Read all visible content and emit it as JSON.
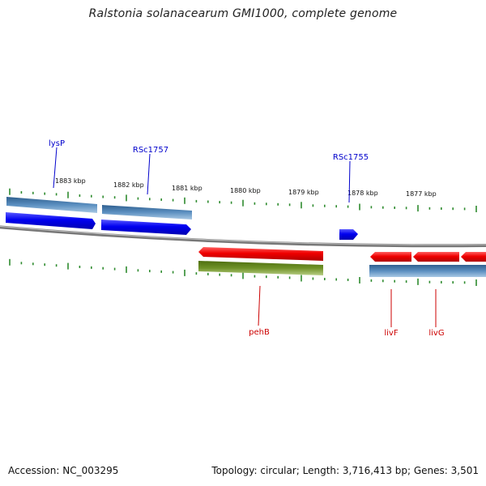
{
  "title": "Ralstonia solanacearum GMI1000, complete genome",
  "footer": {
    "accession": "Accession: NC_003295",
    "summary": "Topology: circular; Length: 3,716,413 bp; Genes: 3,501"
  },
  "colors": {
    "backbone": "#8a8a8a",
    "tick": "#2e8b2e",
    "forward_gene": "#0000ee",
    "forward_cds": "#4a7fb0",
    "reverse_gene": "#ee0000",
    "reverse_cds": "#6b8e23",
    "forward_label": "#0000cc",
    "reverse_label": "#cc0000"
  },
  "axis": {
    "kbp_labels": [
      "1883 kbp",
      "1882 kbp",
      "1881 kbp",
      "1880 kbp",
      "1879 kbp",
      "1878 kbp",
      "1877 kbp"
    ]
  },
  "gene_labels": {
    "forward": [
      "lysP",
      "RSc1757",
      "RSc1755"
    ],
    "reverse": [
      "pehB",
      "livF",
      "livG"
    ]
  }
}
